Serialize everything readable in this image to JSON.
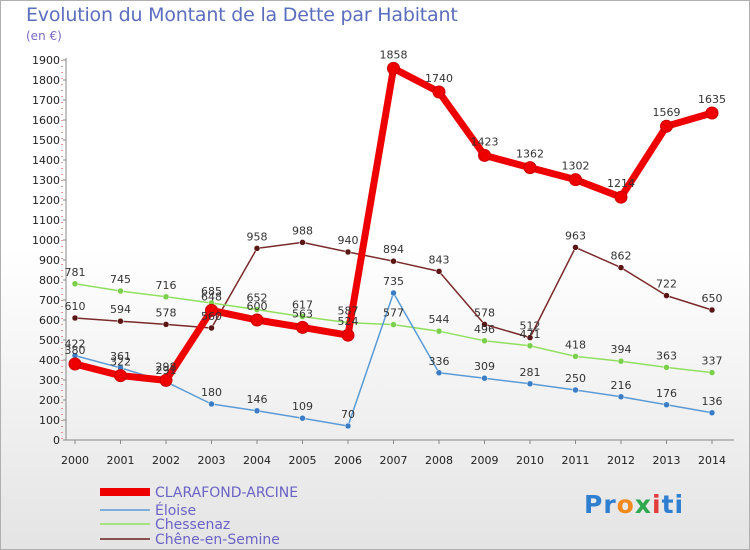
{
  "title": "Evolution du Montant de la Dette par Habitant",
  "subtitle": "(en €)",
  "logo": {
    "p1": "Pr",
    "p2": "o",
    "p3": "x",
    "p4": "i",
    "p5": "ti"
  },
  "chart_data": {
    "type": "line",
    "title": "Evolution du Montant de la Dette par Habitant",
    "ylabel": "(en €)",
    "xlabel": "",
    "ylim": [
      0,
      1900
    ],
    "yticks": [
      0,
      100,
      200,
      300,
      400,
      500,
      600,
      700,
      800,
      900,
      1000,
      1100,
      1200,
      1300,
      1400,
      1500,
      1600,
      1700,
      1800,
      1900
    ],
    "categories": [
      "2000",
      "2001",
      "2002",
      "2003",
      "2004",
      "2005",
      "2006",
      "2007",
      "2008",
      "2009",
      "2010",
      "2011",
      "2012",
      "2013",
      "2014"
    ],
    "grid": false,
    "legend_position": "bottom-left",
    "series": [
      {
        "name": "CLARAFOND-ARCINE",
        "color": "#ee0000",
        "values": [
          380,
          322,
          298,
          648,
          600,
          563,
          524,
          1858,
          1740,
          1423,
          1362,
          1302,
          1214,
          1569,
          1635
        ]
      },
      {
        "name": "Éloise",
        "color": "#5b9bd5",
        "values": [
          422,
          361,
          291,
          180,
          146,
          109,
          70,
          735,
          336,
          309,
          281,
          250,
          216,
          176,
          136
        ]
      },
      {
        "name": "Chessenaz",
        "color": "#90e060",
        "values": [
          781,
          745,
          716,
          685,
          652,
          617,
          587,
          577,
          544,
          496,
          471,
          418,
          394,
          363,
          337
        ]
      },
      {
        "name": "Chêne-en-Semine",
        "color": "#6b1f1f",
        "values": [
          610,
          594,
          578,
          560,
          958,
          988,
          940,
          894,
          843,
          578,
          512,
          963,
          862,
          722,
          650
        ]
      }
    ]
  }
}
